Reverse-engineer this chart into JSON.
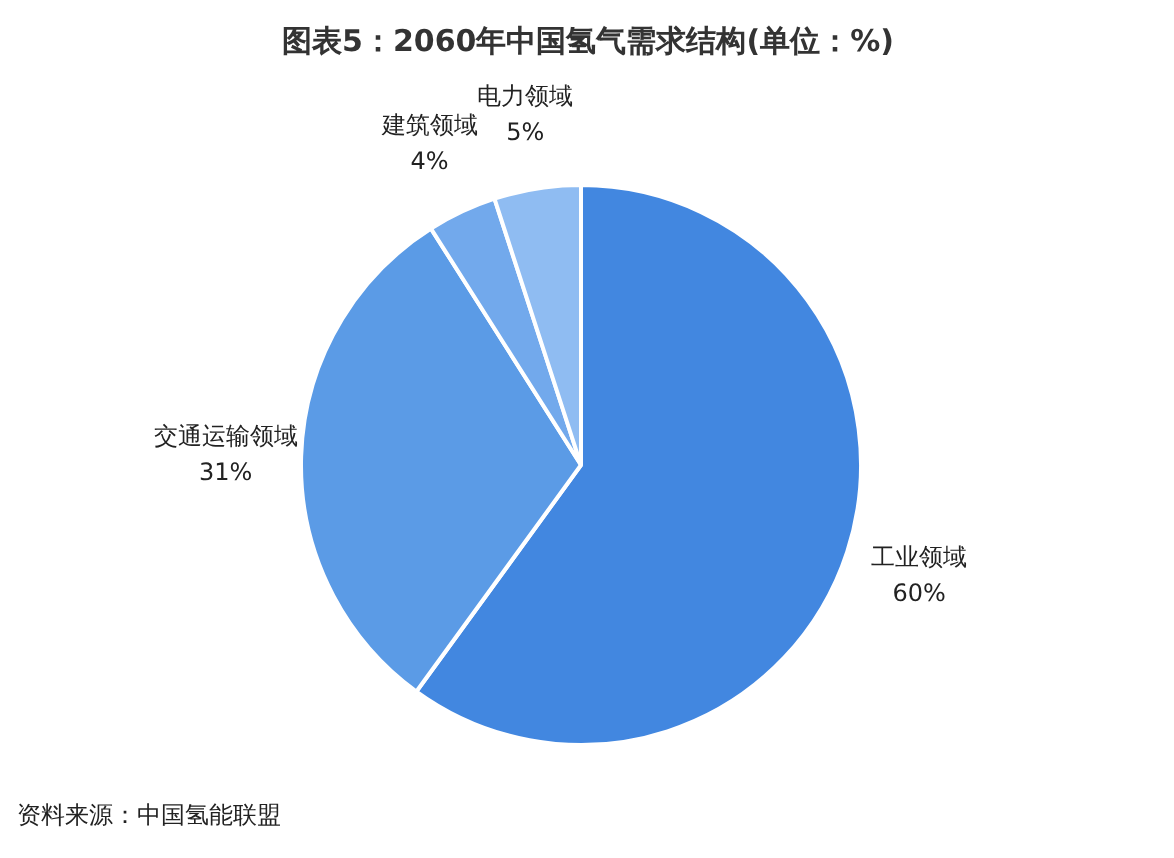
{
  "chart_data": {
    "type": "pie",
    "title": "图表5：2060年中国氢气需求结构(单位：%)",
    "categories": [
      "工业领域",
      "交通运输领域",
      "建筑领域",
      "电力领域"
    ],
    "values": [
      60,
      31,
      4,
      5
    ],
    "value_labels": [
      "60%",
      "31%",
      "4%",
      "5%"
    ],
    "colors": [
      "#4287e0",
      "#5b9be6",
      "#72a9ec",
      "#8fbcf2"
    ],
    "annotations": [
      "资料来源：中国氢能联盟"
    ]
  }
}
